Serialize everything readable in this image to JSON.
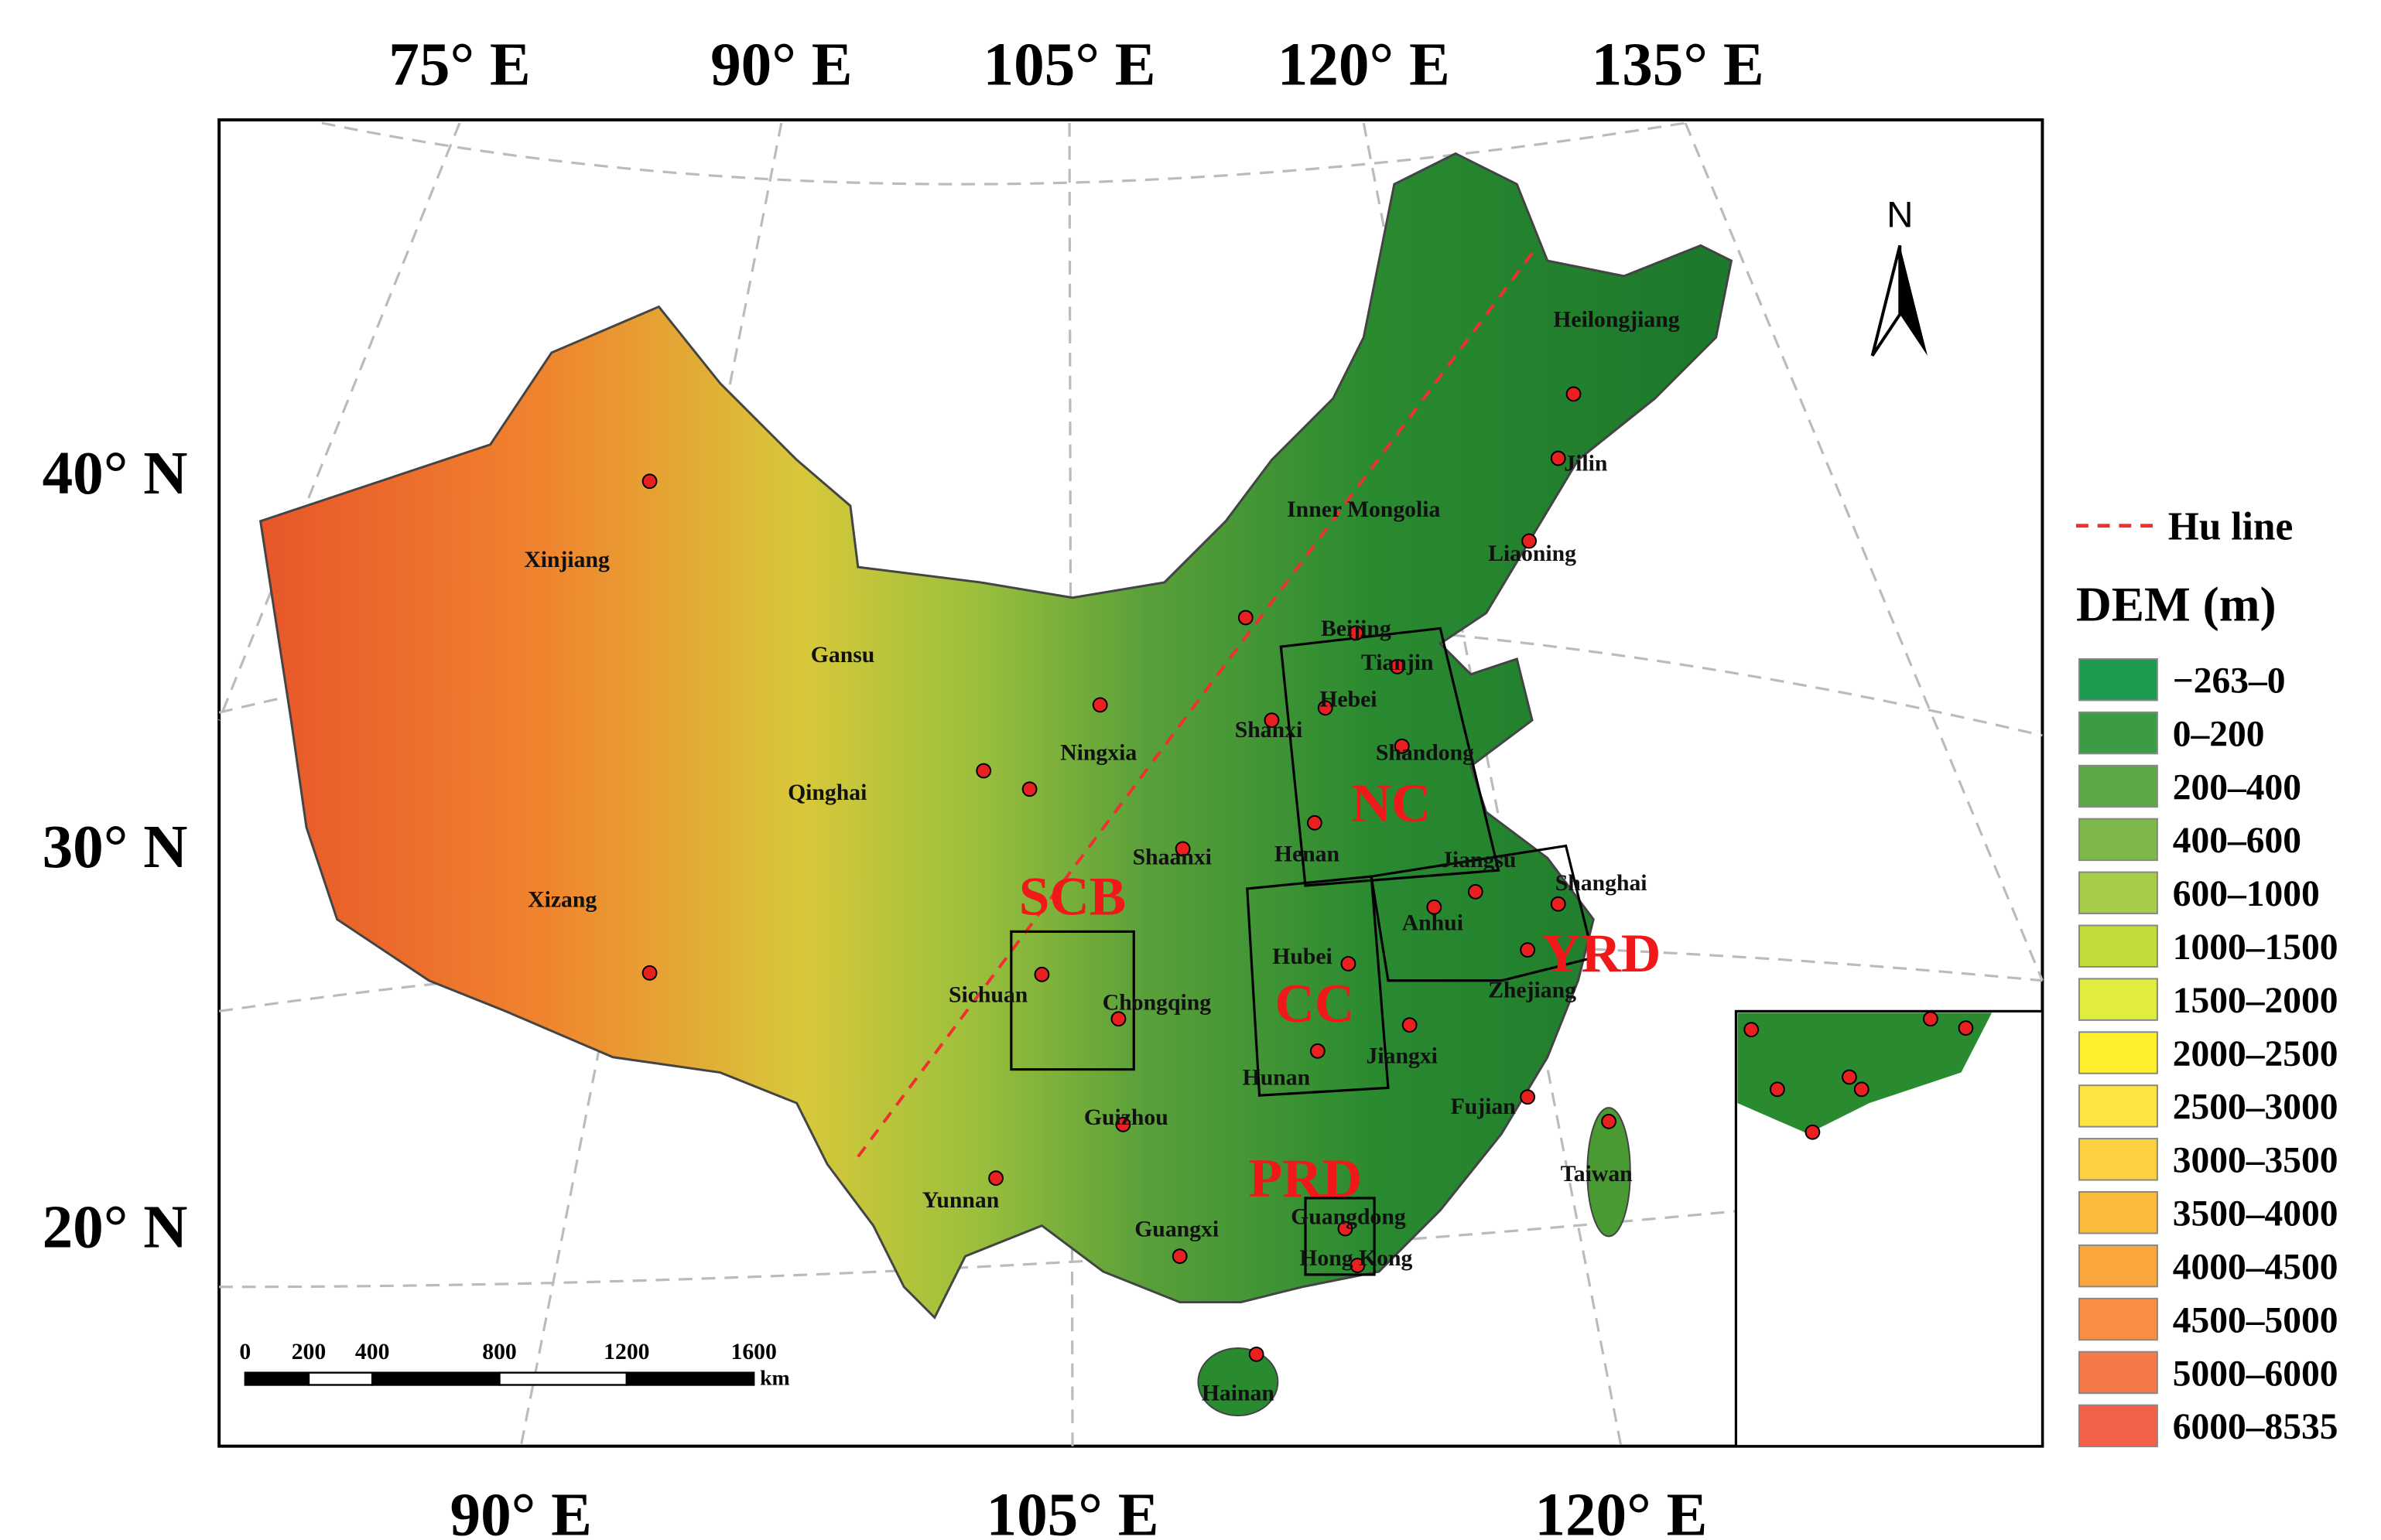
{
  "graticule_labels": {
    "top": [
      "75° E",
      "90° E",
      "105° E",
      "120° E",
      "135° E"
    ],
    "bottom": [
      "90° E",
      "105° E",
      "120° E"
    ],
    "left": [
      "40° N",
      "30° N",
      "20° N"
    ]
  },
  "provinces": [
    "Heilongjiang",
    "Jilin",
    "Liaoning",
    "Inner Mongolia",
    "Beijing",
    "Tianjin",
    "Hebei",
    "Shanxi",
    "Shandong",
    "Henan",
    "Shaanxi",
    "Ningxia",
    "Gansu",
    "Qinghai",
    "Xinjiang",
    "Xizang",
    "Sichuan",
    "Chongqing",
    "Hubei",
    "Anhui",
    "Jiangsu",
    "Shanghai",
    "Zhejiang",
    "Hunan",
    "Jiangxi",
    "Fujian",
    "Guizhou",
    "Yunnan",
    "Guangxi",
    "Guangdong",
    "Hong Kong",
    "Taiwan",
    "Hainan"
  ],
  "regions": [
    "SCB",
    "NC",
    "CC",
    "YRD",
    "PRD"
  ],
  "north_arrow": "N",
  "scale_bar": {
    "ticks": [
      0,
      200,
      400,
      800,
      1200,
      1600
    ],
    "unit": "km"
  },
  "legend": {
    "hu_line": "Hu line",
    "title": "DEM (m)",
    "classes": [
      {
        "label": "−263–0",
        "color": "#1c9a4e"
      },
      {
        "label": "0–200",
        "color": "#3c9c46"
      },
      {
        "label": "200–400",
        "color": "#5ca846"
      },
      {
        "label": "400–600",
        "color": "#7eb84a"
      },
      {
        "label": "600–1000",
        "color": "#a6cc48"
      },
      {
        "label": "1000–1500",
        "color": "#c4dc3a"
      },
      {
        "label": "1500–2000",
        "color": "#e0ec40"
      },
      {
        "label": "2000–2500",
        "color": "#fff02e"
      },
      {
        "label": "2500–3000",
        "color": "#fde445"
      },
      {
        "label": "3000–3500",
        "color": "#fcd040"
      },
      {
        "label": "3500–4000",
        "color": "#fbbc3e"
      },
      {
        "label": "4000–4500",
        "color": "#f9a63c"
      },
      {
        "label": "4500–5000",
        "color": "#f78e42"
      },
      {
        "label": "5000–6000",
        "color": "#f57848"
      },
      {
        "label": "6000–8535",
        "color": "#f2604a"
      }
    ]
  }
}
